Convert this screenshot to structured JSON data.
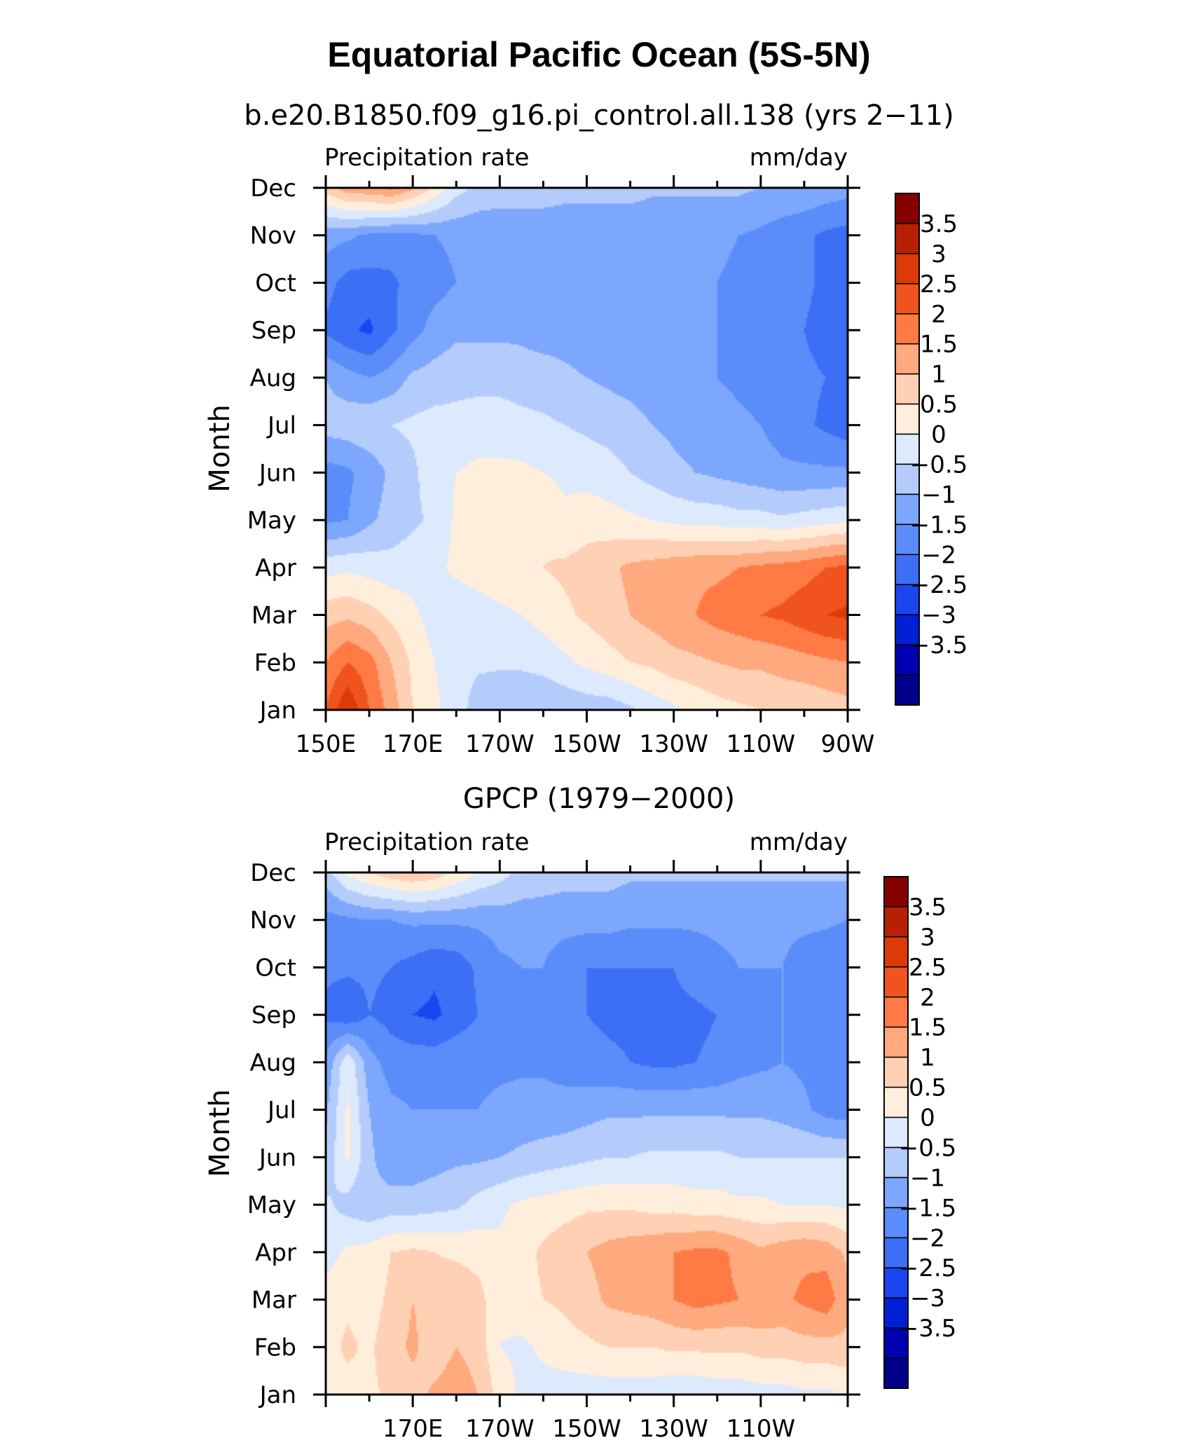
{
  "figure": {
    "title": "Equatorial Pacific Ocean (5S-5N)"
  },
  "chart_data": [
    {
      "type": "heatmap",
      "title": "b.e20.B1850.f09_g16.pi_control.all.138 (yrs 2−11)",
      "left_label": "Precipitation rate",
      "right_label": "mm/day",
      "ylabel": "Month",
      "xlabel": "",
      "x_tick_labels": [
        "150E",
        "170E",
        "170W",
        "150W",
        "130W",
        "110W",
        "90W"
      ],
      "y_tick_labels": [
        "Jan",
        "Feb",
        "Mar",
        "Apr",
        "May",
        "Jun",
        "Jul",
        "Aug",
        "Sep",
        "Oct",
        "Nov",
        "Dec"
      ],
      "x_range_deg_east": [
        150,
        270
      ],
      "colorbar_levels": [
        -3.5,
        -3,
        -2.5,
        -2,
        -1.5,
        -1,
        -0.5,
        0,
        0.5,
        1,
        1.5,
        2,
        2.5,
        3,
        3.5
      ],
      "colorbar_labels": [
        "3.5",
        "3",
        "2.5",
        "2",
        "1.5",
        "1",
        "0.5",
        "0",
        "−0.5",
        "−1",
        "−1.5",
        "−2",
        "−2.5",
        "−3",
        "−3.5"
      ],
      "lons": [
        150,
        155,
        160,
        165,
        170,
        175,
        180,
        185,
        190,
        195,
        200,
        205,
        210,
        215,
        220,
        225,
        230,
        235,
        240,
        245,
        250,
        255,
        260,
        265,
        270
      ],
      "months": [
        "Jan",
        "Feb",
        "Mar",
        "Apr",
        "May",
        "Jun",
        "Jul",
        "Aug",
        "Sep",
        "Oct",
        "Nov",
        "Dec"
      ],
      "values": [
        [
          2.5,
          3.5,
          2.5,
          1.8,
          1.0,
          0.6,
          0.3,
          -0.3,
          -0.5,
          -0.5,
          -0.5,
          -0.4,
          -0.3,
          -0.3,
          -0.1,
          0.2,
          0.4,
          0.6,
          0.8,
          0.9,
          1.0,
          1.1,
          1.1,
          1.2,
          1.3
        ],
        [
          2.0,
          2.5,
          2.2,
          1.5,
          0.9,
          0.5,
          0.2,
          0.1,
          0.1,
          0.1,
          0.2,
          0.4,
          0.6,
          0.8,
          1.0,
          1.1,
          1.3,
          1.4,
          1.5,
          1.6,
          1.6,
          1.7,
          1.8,
          1.9,
          2.0
        ],
        [
          1.3,
          1.4,
          1.2,
          0.9,
          0.6,
          0.3,
          0.2,
          0.3,
          0.4,
          0.5,
          0.7,
          0.9,
          1.1,
          1.3,
          1.5,
          1.7,
          1.9,
          2.0,
          2.2,
          2.3,
          2.5,
          2.6,
          2.8,
          3.0,
          3.1
        ],
        [
          0.3,
          0.4,
          0.3,
          0.2,
          0.3,
          0.4,
          0.6,
          0.7,
          0.8,
          0.9,
          1.0,
          1.1,
          1.2,
          1.4,
          1.6,
          1.7,
          1.8,
          1.9,
          1.9,
          2.0,
          2.1,
          2.2,
          2.3,
          2.5,
          2.6
        ],
        [
          -1.1,
          -1.0,
          -0.6,
          -0.3,
          -0.1,
          0.1,
          0.6,
          0.8,
          0.8,
          0.8,
          0.9,
          0.6,
          0.8,
          0.7,
          0.6,
          0.5,
          0.4,
          0.3,
          0.3,
          0.2,
          0.2,
          0.1,
          0.2,
          0.3,
          0.4
        ],
        [
          -1.2,
          -1.1,
          -0.8,
          -0.4,
          -0.1,
          0.3,
          0.5,
          0.6,
          0.6,
          0.6,
          0.5,
          0.4,
          0.3,
          0.2,
          0.0,
          -0.2,
          -0.4,
          -0.5,
          -0.6,
          -0.7,
          -0.8,
          -0.9,
          -0.9,
          -0.9,
          -0.9
        ],
        [
          -0.3,
          -0.2,
          -0.1,
          0.0,
          0.1,
          0.2,
          0.2,
          0.3,
          0.3,
          0.2,
          0.1,
          0.0,
          -0.1,
          -0.2,
          -0.3,
          -0.5,
          -0.6,
          -0.7,
          -0.8,
          -0.9,
          -1.0,
          -1.2,
          -1.4,
          -1.6,
          -1.8
        ],
        [
          -0.5,
          -0.8,
          -1.0,
          -0.8,
          -0.4,
          -0.3,
          -0.2,
          -0.2,
          -0.2,
          -0.3,
          -0.3,
          -0.4,
          -0.5,
          -0.6,
          -0.7,
          -0.8,
          -0.9,
          -1.0,
          -1.0,
          -1.1,
          -1.2,
          -1.3,
          -1.4,
          -1.5,
          -1.7
        ],
        [
          -1.6,
          -1.9,
          -2.1,
          -1.6,
          -1.2,
          -0.8,
          -0.6,
          -0.6,
          -0.6,
          -0.6,
          -0.7,
          -0.7,
          -0.8,
          -0.8,
          -0.9,
          -0.9,
          -1.0,
          -1.0,
          -1.0,
          -1.1,
          -1.1,
          -1.3,
          -1.5,
          -1.7,
          -1.9
        ],
        [
          -1.3,
          -1.7,
          -1.7,
          -1.6,
          -1.3,
          -1.2,
          -1.0,
          -1.0,
          -1.0,
          -1.0,
          -1.0,
          -1.0,
          -1.0,
          -1.0,
          -1.0,
          -1.0,
          -1.0,
          -1.0,
          -1.0,
          -1.1,
          -1.1,
          -1.2,
          -1.4,
          -1.6,
          -1.8
        ],
        [
          -0.8,
          -0.9,
          -1.1,
          -1.2,
          -1.1,
          -1.0,
          -0.9,
          -0.9,
          -0.9,
          -0.9,
          -0.9,
          -0.9,
          -0.9,
          -0.9,
          -0.9,
          -0.9,
          -0.9,
          -0.9,
          -0.9,
          -1.0,
          -1.1,
          -1.3,
          -1.4,
          -1.6,
          -1.7
        ],
        [
          1.2,
          1.8,
          1.9,
          2.1,
          1.6,
          0.9,
          0.2,
          -0.1,
          -0.2,
          -0.2,
          -0.2,
          -0.3,
          -0.3,
          -0.3,
          -0.3,
          -0.4,
          -0.4,
          -0.4,
          -0.4,
          -0.4,
          -0.5,
          -0.5,
          -0.6,
          -0.7,
          -0.8
        ]
      ]
    },
    {
      "type": "heatmap",
      "title": "GPCP (1979−2000)",
      "left_label": "Precipitation rate",
      "right_label": "mm/day",
      "ylabel": "Month",
      "xlabel": "",
      "x_tick_labels": [
        "170E",
        "170W",
        "150W",
        "130W",
        "110W"
      ],
      "y_tick_labels": [
        "Jan",
        "Feb",
        "Mar",
        "Apr",
        "May",
        "Jun",
        "Jul",
        "Aug",
        "Sep",
        "Oct",
        "Nov",
        "Dec"
      ],
      "x_range_deg_east": [
        150,
        270
      ],
      "colorbar_levels": [
        -3.5,
        -3,
        -2.5,
        -2,
        -1.5,
        -1,
        -0.5,
        0,
        0.5,
        1,
        1.5,
        2,
        2.5,
        3,
        3.5
      ],
      "colorbar_labels": [
        "3.5",
        "3",
        "2.5",
        "2",
        "1.5",
        "1",
        "0.5",
        "0",
        "−0.5",
        "−1",
        "−1.5",
        "−2",
        "−2.5",
        "−3",
        "−3.5"
      ],
      "lons": [
        150,
        155,
        160,
        165,
        170,
        175,
        180,
        185,
        190,
        195,
        200,
        205,
        210,
        215,
        220,
        225,
        230,
        235,
        240,
        245,
        250,
        255,
        260,
        265,
        270
      ],
      "months": [
        "Jan",
        "Feb",
        "Mar",
        "Apr",
        "May",
        "Jun",
        "Jul",
        "Aug",
        "Sep",
        "Oct",
        "Nov",
        "Dec"
      ],
      "values": [
        [
          0.9,
          0.8,
          0.9,
          1.1,
          1.3,
          1.6,
          1.8,
          1.5,
          0.8,
          0.4,
          0.3,
          0.2,
          0.2,
          0.2,
          0.2,
          0.2,
          0.1,
          0.1,
          0.2,
          0.2,
          0.3,
          0.3,
          0.4,
          0.4,
          0.5
        ],
        [
          0.8,
          1.1,
          0.9,
          1.3,
          1.6,
          1.2,
          1.5,
          1.3,
          0.5,
          0.4,
          0.6,
          0.8,
          0.9,
          1.0,
          1.0,
          1.0,
          1.1,
          1.1,
          1.1,
          1.1,
          1.2,
          1.2,
          1.3,
          1.3,
          1.4
        ],
        [
          0.7,
          0.9,
          0.8,
          1.1,
          1.5,
          1.3,
          1.4,
          1.2,
          0.6,
          0.8,
          1.0,
          1.1,
          1.3,
          1.6,
          1.7,
          1.8,
          2.0,
          2.2,
          2.1,
          2.0,
          2.0,
          1.9,
          2.1,
          2.3,
          1.6
        ],
        [
          0.3,
          0.6,
          0.7,
          1.0,
          1.1,
          1.0,
          0.9,
          0.8,
          0.6,
          0.8,
          1.1,
          1.3,
          1.5,
          1.7,
          1.8,
          1.9,
          2.0,
          2.1,
          2.1,
          1.9,
          1.6,
          1.8,
          1.9,
          1.8,
          1.4
        ],
        [
          0.1,
          -0.2,
          -0.4,
          -0.3,
          -0.3,
          -0.2,
          -0.1,
          0.2,
          0.4,
          0.6,
          0.7,
          0.8,
          0.9,
          0.9,
          0.9,
          0.8,
          0.8,
          0.7,
          0.7,
          0.6,
          0.6,
          0.5,
          0.5,
          0.5,
          0.4
        ],
        [
          -0.4,
          0.6,
          -0.4,
          -0.8,
          -0.8,
          -0.7,
          -0.6,
          -0.6,
          -0.5,
          -0.4,
          -0.3,
          -0.2,
          -0.1,
          0.0,
          0.0,
          0.1,
          0.1,
          0.1,
          0.1,
          0.0,
          0.0,
          0.0,
          0.0,
          0.0,
          0.0
        ],
        [
          -0.6,
          0.6,
          -0.5,
          -0.9,
          -1.0,
          -1.0,
          -1.0,
          -1.0,
          -0.9,
          -0.8,
          -0.8,
          -0.8,
          -0.7,
          -0.6,
          -0.6,
          -0.6,
          -0.6,
          -0.6,
          -0.6,
          -0.6,
          -0.6,
          -0.7,
          -0.9,
          -1.2,
          -1.3
        ],
        [
          -0.9,
          0.4,
          -0.8,
          -1.2,
          -1.2,
          -1.2,
          -1.1,
          -1.1,
          -1.1,
          -1.1,
          -1.1,
          -1.2,
          -1.3,
          -1.4,
          -1.5,
          -1.6,
          -1.6,
          -1.5,
          -1.4,
          -1.2,
          -1.1,
          -1.0,
          -1.1,
          -1.3,
          -1.5
        ],
        [
          -1.6,
          -1.9,
          -1.5,
          -1.7,
          -2.0,
          -2.1,
          -1.8,
          -1.5,
          -1.3,
          -1.3,
          -1.3,
          -1.4,
          -1.5,
          -1.6,
          -1.6,
          -1.6,
          -1.6,
          -1.6,
          -1.5,
          -1.3,
          -1.1,
          -1.0,
          -1.1,
          -1.3,
          -1.5
        ],
        [
          -1.4,
          -1.4,
          -1.4,
          -1.5,
          -1.7,
          -1.9,
          -1.8,
          -1.4,
          -1.1,
          -1.0,
          -1.0,
          -1.3,
          -1.5,
          -1.5,
          -1.5,
          -1.5,
          -1.5,
          -1.3,
          -1.1,
          -1.0,
          -1.0,
          -1.0,
          -1.2,
          -1.4,
          -1.5
        ],
        [
          -1.2,
          -1.1,
          -1.0,
          -1.0,
          -0.9,
          -0.9,
          -0.9,
          -0.9,
          -0.8,
          -0.8,
          -0.8,
          -0.8,
          -0.8,
          -0.8,
          -0.9,
          -0.9,
          -0.9,
          -0.9,
          -0.9,
          -0.9,
          -0.9,
          -0.9,
          -0.9,
          -0.9,
          -1.0
        ],
        [
          -0.2,
          0.6,
          1.0,
          1.3,
          1.5,
          1.3,
          0.9,
          0.5,
          0.2,
          -0.1,
          -0.2,
          -0.3,
          -0.3,
          -0.3,
          -0.4,
          -0.4,
          -0.4,
          -0.4,
          -0.4,
          -0.4,
          -0.4,
          -0.4,
          -0.4,
          -0.4,
          -0.4
        ]
      ]
    }
  ],
  "colors": {
    "palette": [
      "#00008B",
      "#0000B3",
      "#0020D8",
      "#1A46F0",
      "#3C6EF6",
      "#5A8DFA",
      "#7DA6FD",
      "#B4CCFC",
      "#DDE9FC",
      "#FFEEDB",
      "#FFD0B4",
      "#FFA97E",
      "#FF7A45",
      "#F0531D",
      "#DC3A08",
      "#B82005",
      "#860000"
    ],
    "colorbar": [
      "#860000",
      "#B82005",
      "#DC3A08",
      "#F0531D",
      "#FF7A45",
      "#FFA97E",
      "#FFD0B4",
      "#FFEEDB",
      "#DDE9FC",
      "#B4CCFC",
      "#7DA6FD",
      "#5A8DFA",
      "#3C6EF6",
      "#1A46F0",
      "#0020D8",
      "#0000B3",
      "#00008B"
    ]
  }
}
